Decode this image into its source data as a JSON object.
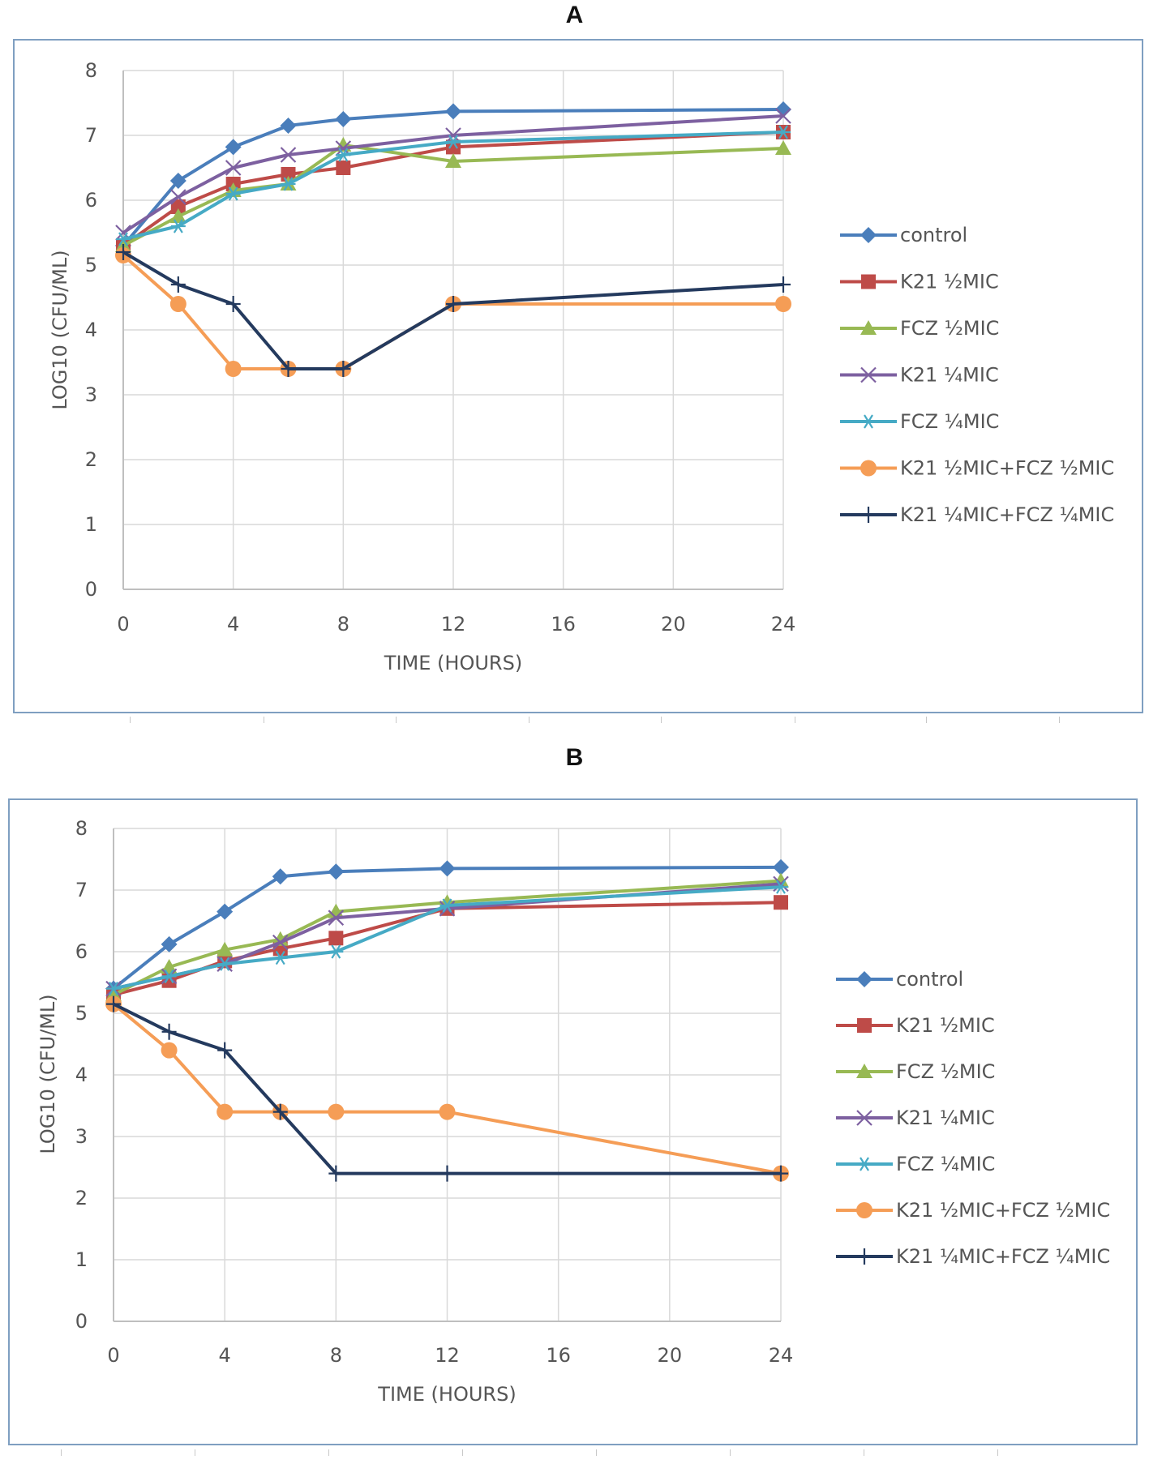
{
  "panels": [
    {
      "label": "A",
      "chart_data": {
        "type": "line",
        "title": "",
        "xlabel": "TIME (HOURS)",
        "ylabel": "LOG10 (CFU/ML)",
        "xlim": [
          0,
          24
        ],
        "ylim": [
          0,
          8
        ],
        "xticks": [
          0,
          4,
          8,
          12,
          16,
          20,
          24
        ],
        "yticks": [
          0,
          1,
          2,
          3,
          4,
          5,
          6,
          7,
          8
        ],
        "grid": true,
        "legend_position": "right",
        "x": [
          0,
          2,
          4,
          6,
          8,
          12,
          24
        ],
        "series": [
          {
            "name": "control",
            "color": "#4a7ebb",
            "marker": "diamond",
            "values": [
              5.3,
              6.3,
              6.82,
              7.15,
              7.25,
              7.37,
              7.4
            ]
          },
          {
            "name": "K21 ½MIC",
            "color": "#be4b48",
            "marker": "square",
            "values": [
              5.3,
              5.9,
              6.25,
              6.4,
              6.5,
              6.82,
              7.05
            ]
          },
          {
            "name": "FCZ ½MIC",
            "color": "#98b954",
            "marker": "triangle",
            "values": [
              5.3,
              5.75,
              6.15,
              6.25,
              6.85,
              6.6,
              6.8
            ]
          },
          {
            "name": "K21 ¼MIC",
            "color": "#7d60a0",
            "marker": "x",
            "values": [
              5.5,
              6.05,
              6.5,
              6.7,
              6.8,
              7.0,
              7.3
            ]
          },
          {
            "name": "FCZ ¼MIC",
            "color": "#46aac5",
            "marker": "star",
            "values": [
              5.4,
              5.6,
              6.1,
              6.25,
              6.7,
              6.9,
              7.05
            ]
          },
          {
            "name": "K21 ½MIC+FCZ ½MIC",
            "color": "#f59d56",
            "marker": "circle",
            "values": [
              5.15,
              4.4,
              3.4,
              3.4,
              3.4,
              4.4,
              4.4
            ]
          },
          {
            "name": "K21 ¼MIC+FCZ ¼MIC",
            "color": "#243a5e",
            "marker": "plus",
            "values": [
              5.2,
              4.7,
              4.4,
              3.4,
              3.4,
              4.4,
              4.7
            ]
          }
        ]
      }
    },
    {
      "label": "B",
      "chart_data": {
        "type": "line",
        "title": "",
        "xlabel": "TIME (HOURS)",
        "ylabel": "LOG10 (CFU/ML)",
        "xlim": [
          0,
          24
        ],
        "ylim": [
          0,
          8
        ],
        "xticks": [
          0,
          4,
          8,
          12,
          16,
          20,
          24
        ],
        "yticks": [
          0,
          1,
          2,
          3,
          4,
          5,
          6,
          7,
          8
        ],
        "grid": true,
        "legend_position": "right",
        "x": [
          0,
          2,
          4,
          6,
          8,
          12,
          24
        ],
        "series": [
          {
            "name": "control",
            "color": "#4a7ebb",
            "marker": "diamond",
            "values": [
              5.4,
              6.12,
              6.65,
              7.22,
              7.3,
              7.35,
              7.37
            ]
          },
          {
            "name": "K21 ½MIC",
            "color": "#be4b48",
            "marker": "square",
            "values": [
              5.3,
              5.53,
              5.85,
              6.05,
              6.22,
              6.7,
              6.8
            ]
          },
          {
            "name": "FCZ ½MIC",
            "color": "#98b954",
            "marker": "triangle",
            "values": [
              5.3,
              5.75,
              6.03,
              6.2,
              6.65,
              6.8,
              7.15
            ]
          },
          {
            "name": "K21 ¼MIC",
            "color": "#7d60a0",
            "marker": "x",
            "values": [
              5.4,
              5.6,
              5.8,
              6.15,
              6.55,
              6.7,
              7.1
            ]
          },
          {
            "name": "FCZ ¼MIC",
            "color": "#46aac5",
            "marker": "star",
            "values": [
              5.4,
              5.6,
              5.8,
              5.9,
              6.0,
              6.75,
              7.05
            ]
          },
          {
            "name": "K21 ½MIC+FCZ ½MIC",
            "color": "#f59d56",
            "marker": "circle",
            "values": [
              5.15,
              4.4,
              3.4,
              3.4,
              3.4,
              3.4,
              2.4
            ]
          },
          {
            "name": "K21 ¼MIC+FCZ ¼MIC",
            "color": "#243a5e",
            "marker": "plus",
            "values": [
              5.15,
              4.7,
              4.4,
              3.4,
              2.4,
              2.4,
              2.4
            ]
          }
        ]
      }
    }
  ]
}
